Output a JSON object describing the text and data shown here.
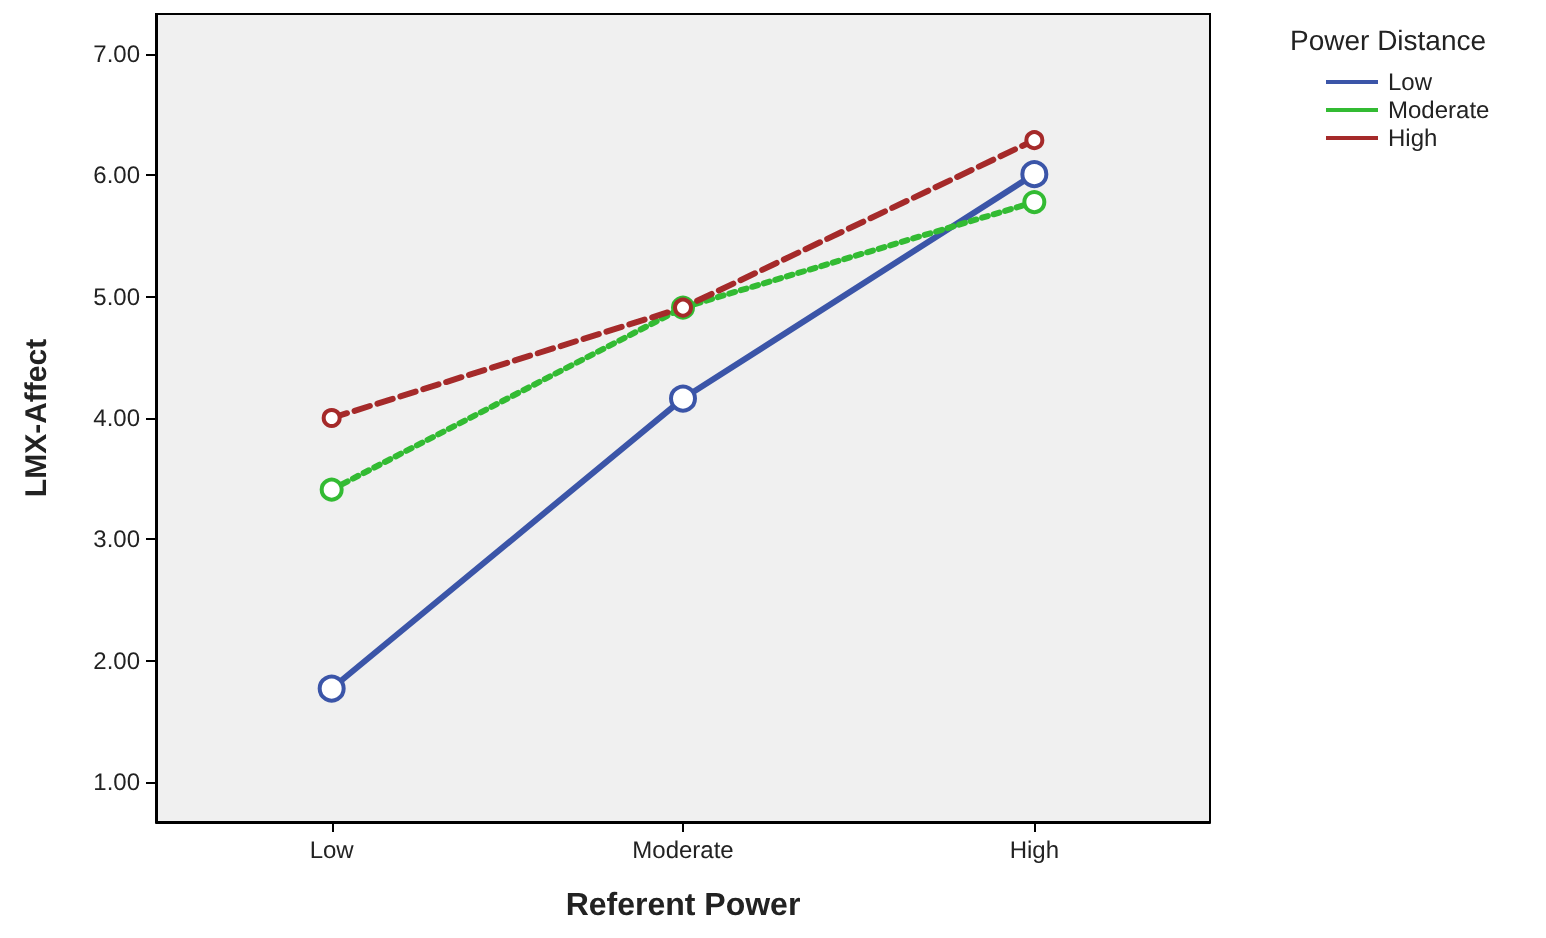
{
  "chart_data": {
    "type": "line",
    "xlabel": "Referent Power",
    "ylabel": "LMX-Affect",
    "legend_title": "Power Distance",
    "categories": [
      "Low",
      "Moderate",
      "High"
    ],
    "series": [
      {
        "name": "Low",
        "color": "#3b55a8",
        "values": [
          1.77,
          4.16,
          6.01
        ],
        "line_style": "solid"
      },
      {
        "name": "Moderate",
        "color": "#33bb33",
        "values": [
          3.41,
          4.91,
          5.78
        ],
        "line_style": "dotted"
      },
      {
        "name": "High",
        "color": "#a52a2a",
        "values": [
          4.0,
          4.91,
          6.29
        ],
        "line_style": "dashed"
      }
    ],
    "ylim": [
      0.67,
      7.33
    ],
    "yticks": [
      {
        "value": 1,
        "label": "1.00"
      },
      {
        "value": 2,
        "label": "2.00"
      },
      {
        "value": 3,
        "label": "3.00"
      },
      {
        "value": 4,
        "label": "4.00"
      },
      {
        "value": 5,
        "label": "5.00"
      },
      {
        "value": 6,
        "label": "6.00"
      },
      {
        "value": 7,
        "label": "7.00"
      }
    ],
    "marker": "circle",
    "grid": false,
    "legend": "top right"
  }
}
